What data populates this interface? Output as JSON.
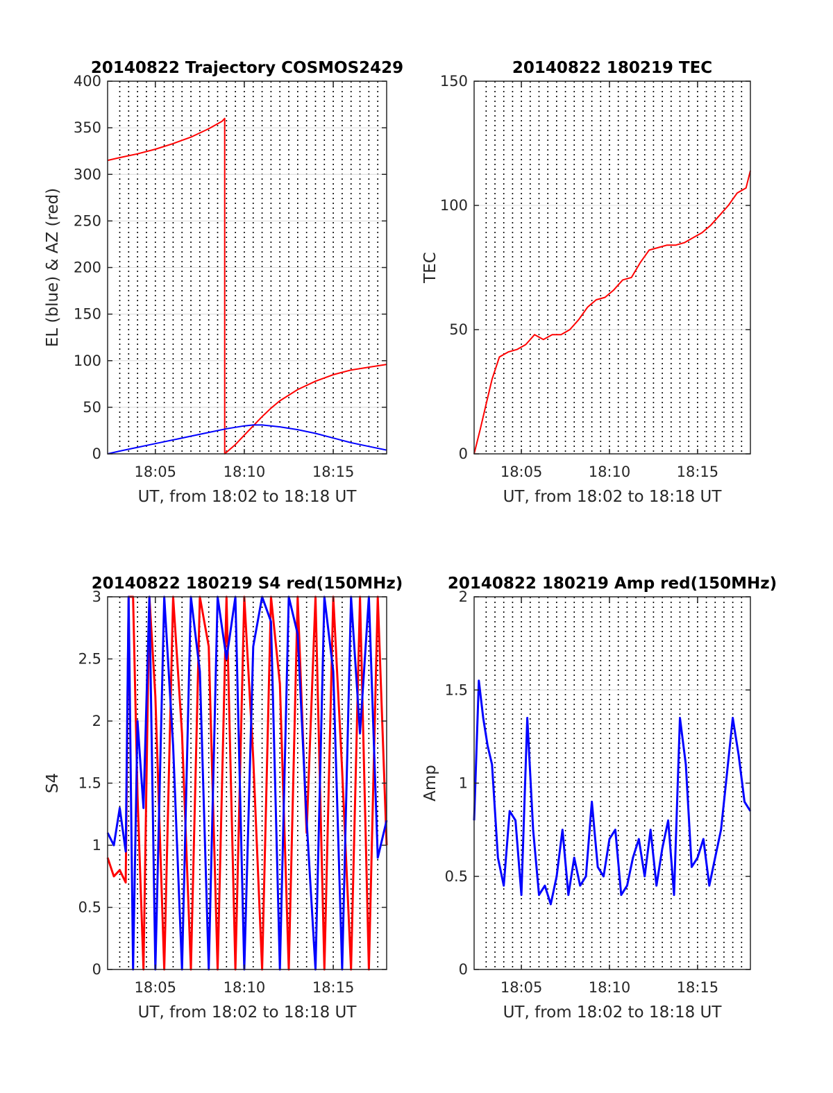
{
  "chart_data": [
    {
      "type": "line",
      "title": "20140822 Trajectory COSMOS2429",
      "xlabel": "UT, from 18:02 to 18:18 UT",
      "ylabel": "EL (blue) & AZ (red)",
      "xlim": [
        "18:02:19",
        "18:18:00"
      ],
      "ylim": [
        0,
        400
      ],
      "xticks": [
        "18:05",
        "18:10",
        "18:15"
      ],
      "yticks": [
        "0",
        "50",
        "100",
        "150",
        "200",
        "250",
        "300",
        "350",
        "400"
      ],
      "grid": true,
      "series": [
        {
          "color": "#ff0000",
          "x": [
            "18:02:19",
            "18:03:00",
            "18:04:00",
            "18:05:00",
            "18:06:00",
            "18:07:00",
            "18:08:00",
            "18:08:45",
            "18:08:54",
            "18:08:54",
            "18:09:30",
            "18:10:00",
            "18:10:30",
            "18:11:00",
            "18:11:30",
            "18:12:00",
            "18:13:00",
            "18:14:00",
            "18:15:00",
            "18:16:00",
            "18:17:00",
            "18:18:00"
          ],
          "values": [
            315,
            318,
            322,
            327,
            333,
            340,
            349,
            357,
            360,
            0,
            10,
            20,
            30,
            40,
            49,
            57,
            69,
            78,
            85,
            90,
            93,
            96
          ]
        },
        {
          "color": "#0000ff",
          "x": [
            "18:02:19",
            "18:03:00",
            "18:04:00",
            "18:05:00",
            "18:06:00",
            "18:07:00",
            "18:08:00",
            "18:09:00",
            "18:10:00",
            "18:10:30",
            "18:11:00",
            "18:12:00",
            "18:13:00",
            "18:14:00",
            "18:15:00",
            "18:16:00",
            "18:17:00",
            "18:18:00"
          ],
          "values": [
            0,
            3,
            7,
            11,
            15,
            19,
            23,
            27,
            30,
            31,
            31,
            29,
            26,
            22,
            17,
            12,
            8,
            4
          ]
        }
      ]
    },
    {
      "type": "line",
      "title": "20140822 180219 TEC",
      "xlabel": "UT, from 18:02 to 18:18 UT",
      "ylabel": "TEC",
      "xlim": [
        "18:02:19",
        "18:18:00"
      ],
      "ylim": [
        0,
        150
      ],
      "xticks": [
        "18:05",
        "18:10",
        "18:15"
      ],
      "yticks": [
        "0",
        "50",
        "100",
        "150"
      ],
      "grid": true,
      "series": [
        {
          "color": "#ff0000",
          "x": [
            "18:02:19",
            "18:02:40",
            "18:03:00",
            "18:03:20",
            "18:03:45",
            "18:04:15",
            "18:04:45",
            "18:05:15",
            "18:05:45",
            "18:06:15",
            "18:06:45",
            "18:07:15",
            "18:07:45",
            "18:08:15",
            "18:08:45",
            "18:09:15",
            "18:09:45",
            "18:10:15",
            "18:10:45",
            "18:11:15",
            "18:11:45",
            "18:12:15",
            "18:12:45",
            "18:13:15",
            "18:13:45",
            "18:14:15",
            "18:14:45",
            "18:15:15",
            "18:15:45",
            "18:16:15",
            "18:16:45",
            "18:17:15",
            "18:17:45",
            "18:18:00"
          ],
          "values": [
            0,
            10,
            20,
            30,
            39,
            41,
            42,
            44,
            48,
            46,
            48,
            48,
            50,
            54,
            59,
            62,
            63,
            66,
            70,
            71,
            77,
            82,
            83,
            84,
            84,
            85,
            87,
            89,
            92,
            96,
            100,
            105,
            107,
            114
          ]
        }
      ]
    },
    {
      "type": "line",
      "title": "20140822 180219 S4 red(150MHz)",
      "xlabel": "UT, from 18:02 to 18:18 UT",
      "ylabel": "S4",
      "xlim": [
        "18:02:19",
        "18:18:00"
      ],
      "ylim": [
        0,
        3
      ],
      "xticks": [
        "18:05",
        "18:10",
        "18:15"
      ],
      "yticks": [
        "0",
        "0.5",
        "1",
        "1.5",
        "2",
        "2.5",
        "3"
      ],
      "grid": true,
      "series": [
        {
          "color": "#ff0000",
          "x": [
            "18:02:19",
            "18:02:40",
            "18:03:00",
            "18:03:20",
            "18:03:30",
            "18:03:45",
            "18:04:00",
            "18:04:20",
            "18:04:40",
            "18:05:00",
            "18:05:30",
            "18:06:00",
            "18:06:30",
            "18:07:00",
            "18:07:30",
            "18:08:00",
            "18:08:30",
            "18:09:00",
            "18:09:30",
            "18:10:00",
            "18:10:30",
            "18:11:00",
            "18:11:30",
            "18:12:00",
            "18:12:30",
            "18:13:00",
            "18:13:30",
            "18:14:00",
            "18:14:30",
            "18:15:00",
            "18:15:30",
            "18:16:00",
            "18:16:30",
            "18:17:00",
            "18:17:30",
            "18:18:00"
          ],
          "values": [
            0.9,
            0.75,
            0.8,
            0.7,
            3,
            3,
            1.4,
            0,
            3,
            2.2,
            0,
            3,
            1.9,
            0,
            3,
            2.6,
            0,
            3,
            0,
            3,
            1.7,
            0,
            3,
            2.3,
            0,
            3,
            1.1,
            3,
            0,
            3,
            1.6,
            0,
            3,
            0,
            3,
            1.0
          ]
        },
        {
          "color": "#0000ff",
          "x": [
            "18:02:19",
            "18:02:40",
            "18:03:00",
            "18:03:20",
            "18:03:30",
            "18:03:45",
            "18:04:00",
            "18:04:20",
            "18:04:40",
            "18:05:00",
            "18:05:30",
            "18:06:00",
            "18:06:30",
            "18:07:00",
            "18:07:30",
            "18:08:00",
            "18:08:30",
            "18:09:00",
            "18:09:30",
            "18:10:00",
            "18:10:30",
            "18:11:00",
            "18:11:30",
            "18:12:00",
            "18:12:30",
            "18:13:00",
            "18:13:30",
            "18:14:00",
            "18:14:30",
            "18:15:00",
            "18:15:30",
            "18:16:00",
            "18:16:30",
            "18:17:00",
            "18:17:30",
            "18:18:00"
          ],
          "values": [
            1.1,
            1.0,
            1.3,
            0.95,
            3,
            0,
            2.0,
            1.3,
            3,
            0,
            3,
            1.8,
            0,
            3,
            2.4,
            0,
            3,
            2.5,
            3,
            0,
            2.6,
            3,
            2.8,
            0,
            3,
            2.7,
            1.2,
            0,
            3,
            2.4,
            0,
            3,
            1.9,
            3,
            0.9,
            1.2
          ]
        }
      ]
    },
    {
      "type": "line",
      "title": "20140822 180219 Amp red(150MHz)",
      "xlabel": "UT, from 18:02 to 18:18 UT",
      "ylabel": "Amp",
      "xlim": [
        "18:02:19",
        "18:18:00"
      ],
      "ylim": [
        0,
        2
      ],
      "xticks": [
        "18:05",
        "18:10",
        "18:15"
      ],
      "yticks": [
        "0",
        "0.5",
        "1",
        "1.5",
        "2"
      ],
      "grid": true,
      "series": [
        {
          "color": "#0000ff",
          "x": [
            "18:02:19",
            "18:02:35",
            "18:02:50",
            "18:03:05",
            "18:03:20",
            "18:03:40",
            "18:04:00",
            "18:04:20",
            "18:04:40",
            "18:05:00",
            "18:05:20",
            "18:05:40",
            "18:06:00",
            "18:06:20",
            "18:06:40",
            "18:07:00",
            "18:07:20",
            "18:07:40",
            "18:08:00",
            "18:08:20",
            "18:08:40",
            "18:09:00",
            "18:09:20",
            "18:09:40",
            "18:10:00",
            "18:10:20",
            "18:10:40",
            "18:11:00",
            "18:11:20",
            "18:11:40",
            "18:12:00",
            "18:12:20",
            "18:12:40",
            "18:13:00",
            "18:13:20",
            "18:13:40",
            "18:14:00",
            "18:14:20",
            "18:14:40",
            "18:15:00",
            "18:15:20",
            "18:15:40",
            "18:16:00",
            "18:16:20",
            "18:16:40",
            "18:17:00",
            "18:17:20",
            "18:17:40",
            "18:18:00"
          ],
          "values": [
            0.8,
            1.55,
            1.35,
            1.2,
            1.1,
            0.6,
            0.45,
            0.85,
            0.8,
            0.4,
            1.35,
            0.75,
            0.4,
            0.45,
            0.35,
            0.5,
            0.75,
            0.4,
            0.6,
            0.45,
            0.5,
            0.9,
            0.55,
            0.5,
            0.7,
            0.75,
            0.4,
            0.45,
            0.6,
            0.7,
            0.5,
            0.75,
            0.45,
            0.65,
            0.8,
            0.4,
            1.35,
            1.1,
            0.55,
            0.6,
            0.7,
            0.45,
            0.6,
            0.75,
            1.05,
            1.35,
            1.15,
            0.9,
            0.85
          ]
        }
      ]
    }
  ]
}
